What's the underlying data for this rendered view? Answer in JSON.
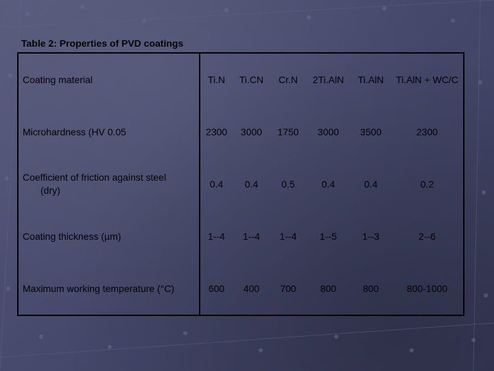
{
  "caption": "Table 2:  Properties of PVD coatings",
  "table": {
    "header": {
      "label": "Coating material",
      "cells": [
        "Ti.N",
        "Ti.CN",
        "Cr.N",
        "2Ti.AlN",
        "Ti.AlN",
        "Ti.AlN + WC/C"
      ]
    },
    "rows": [
      {
        "label": "Microhardness (HV 0.05",
        "cells": [
          "2300",
          "3000",
          "1750",
          "3000",
          "3500",
          "2300"
        ]
      },
      {
        "label": "Coefficient of friction against steel",
        "label2": "(dry)",
        "cells": [
          "0.4",
          "0.4",
          "0.5",
          "0.4",
          "0.4",
          "0.2"
        ]
      },
      {
        "label": "Coating thickness (µm)",
        "cells": [
          "1--4",
          "1--4",
          "1--4",
          "1--5",
          "1--3",
          "2--6"
        ]
      },
      {
        "label": "Maximum working temperature (°C)",
        "cells": [
          "600",
          "400",
          "700",
          "800",
          "800",
          "800-1000"
        ]
      }
    ]
  }
}
